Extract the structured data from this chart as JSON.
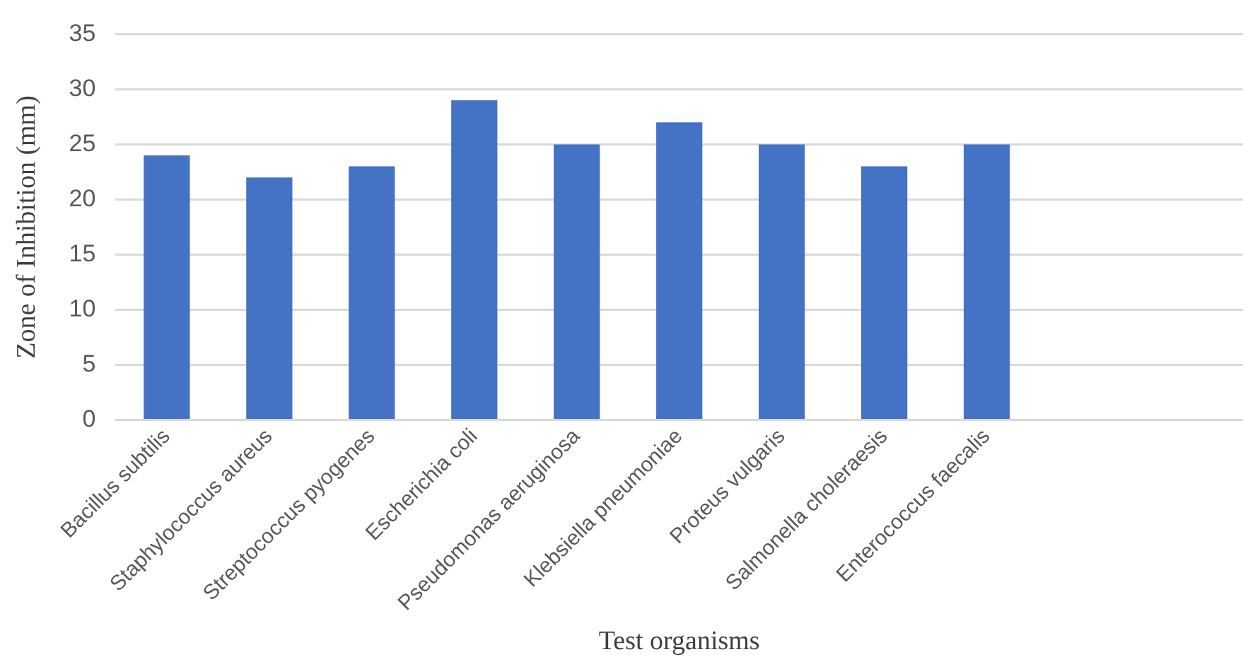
{
  "chart_data": {
    "type": "bar",
    "xlabel": "Test organisms",
    "ylabel": "Zone of Inhibition (mm)",
    "categories": [
      "Bacillus subtilis",
      "Staphylococcus aureus",
      "Streptococcus pyogenes",
      "Escherichia coli",
      "Pseudomonas aeruginosa",
      "Klebsiella pneumoniae",
      "Proteus vulgaris",
      "Salmonella choleraesis",
      "Enterococcus faecalis",
      null,
      null
    ],
    "values": [
      24,
      22,
      23,
      29,
      25,
      27,
      25,
      23,
      25,
      null,
      null
    ],
    "color": "#4472c4",
    "ylim": [
      0,
      35
    ],
    "yticks": [
      0,
      5,
      10,
      15,
      20,
      25,
      30,
      35
    ],
    "grid": "y",
    "legend": false
  }
}
